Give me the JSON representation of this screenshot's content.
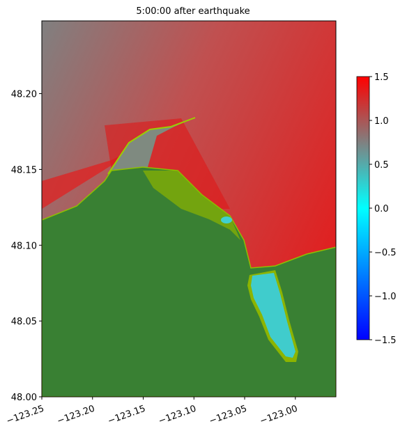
{
  "chart_data": {
    "type": "heatmap",
    "title": "5:00:00 after earthquake",
    "xlim": [
      -123.25,
      -122.96
    ],
    "ylim": [
      48.0,
      48.248
    ],
    "xticks": [
      {
        "value": -123.25,
        "label": "−123.25"
      },
      {
        "value": -123.2,
        "label": "−123.20"
      },
      {
        "value": -123.15,
        "label": "−123.15"
      },
      {
        "value": -123.1,
        "label": "−123.10"
      },
      {
        "value": -123.05,
        "label": "−123.05"
      },
      {
        "value": -123.0,
        "label": "−123.00"
      }
    ],
    "yticks": [
      {
        "value": 48.0,
        "label": "48.00"
      },
      {
        "value": 48.05,
        "label": "48.05"
      },
      {
        "value": 48.1,
        "label": "48.10"
      },
      {
        "value": 48.15,
        "label": "48.15"
      },
      {
        "value": 48.2,
        "label": "48.20"
      }
    ],
    "clim": [
      -1.5,
      1.5
    ],
    "cticks": [
      {
        "value": -1.5,
        "label": "−1.5"
      },
      {
        "value": -1.0,
        "label": "−1.0"
      },
      {
        "value": -0.5,
        "label": "−0.5"
      },
      {
        "value": 0.0,
        "label": "0.0"
      },
      {
        "value": 0.5,
        "label": "0.5"
      },
      {
        "value": 1.0,
        "label": "1.0"
      },
      {
        "value": 1.5,
        "label": "1.5"
      }
    ],
    "colormap": [
      {
        "value": -1.5,
        "color": "#0000ff"
      },
      {
        "value": 0.0,
        "color": "#00ffff"
      },
      {
        "value": 0.75,
        "color": "#808080"
      },
      {
        "value": 1.5,
        "color": "#ff0000"
      }
    ]
  }
}
